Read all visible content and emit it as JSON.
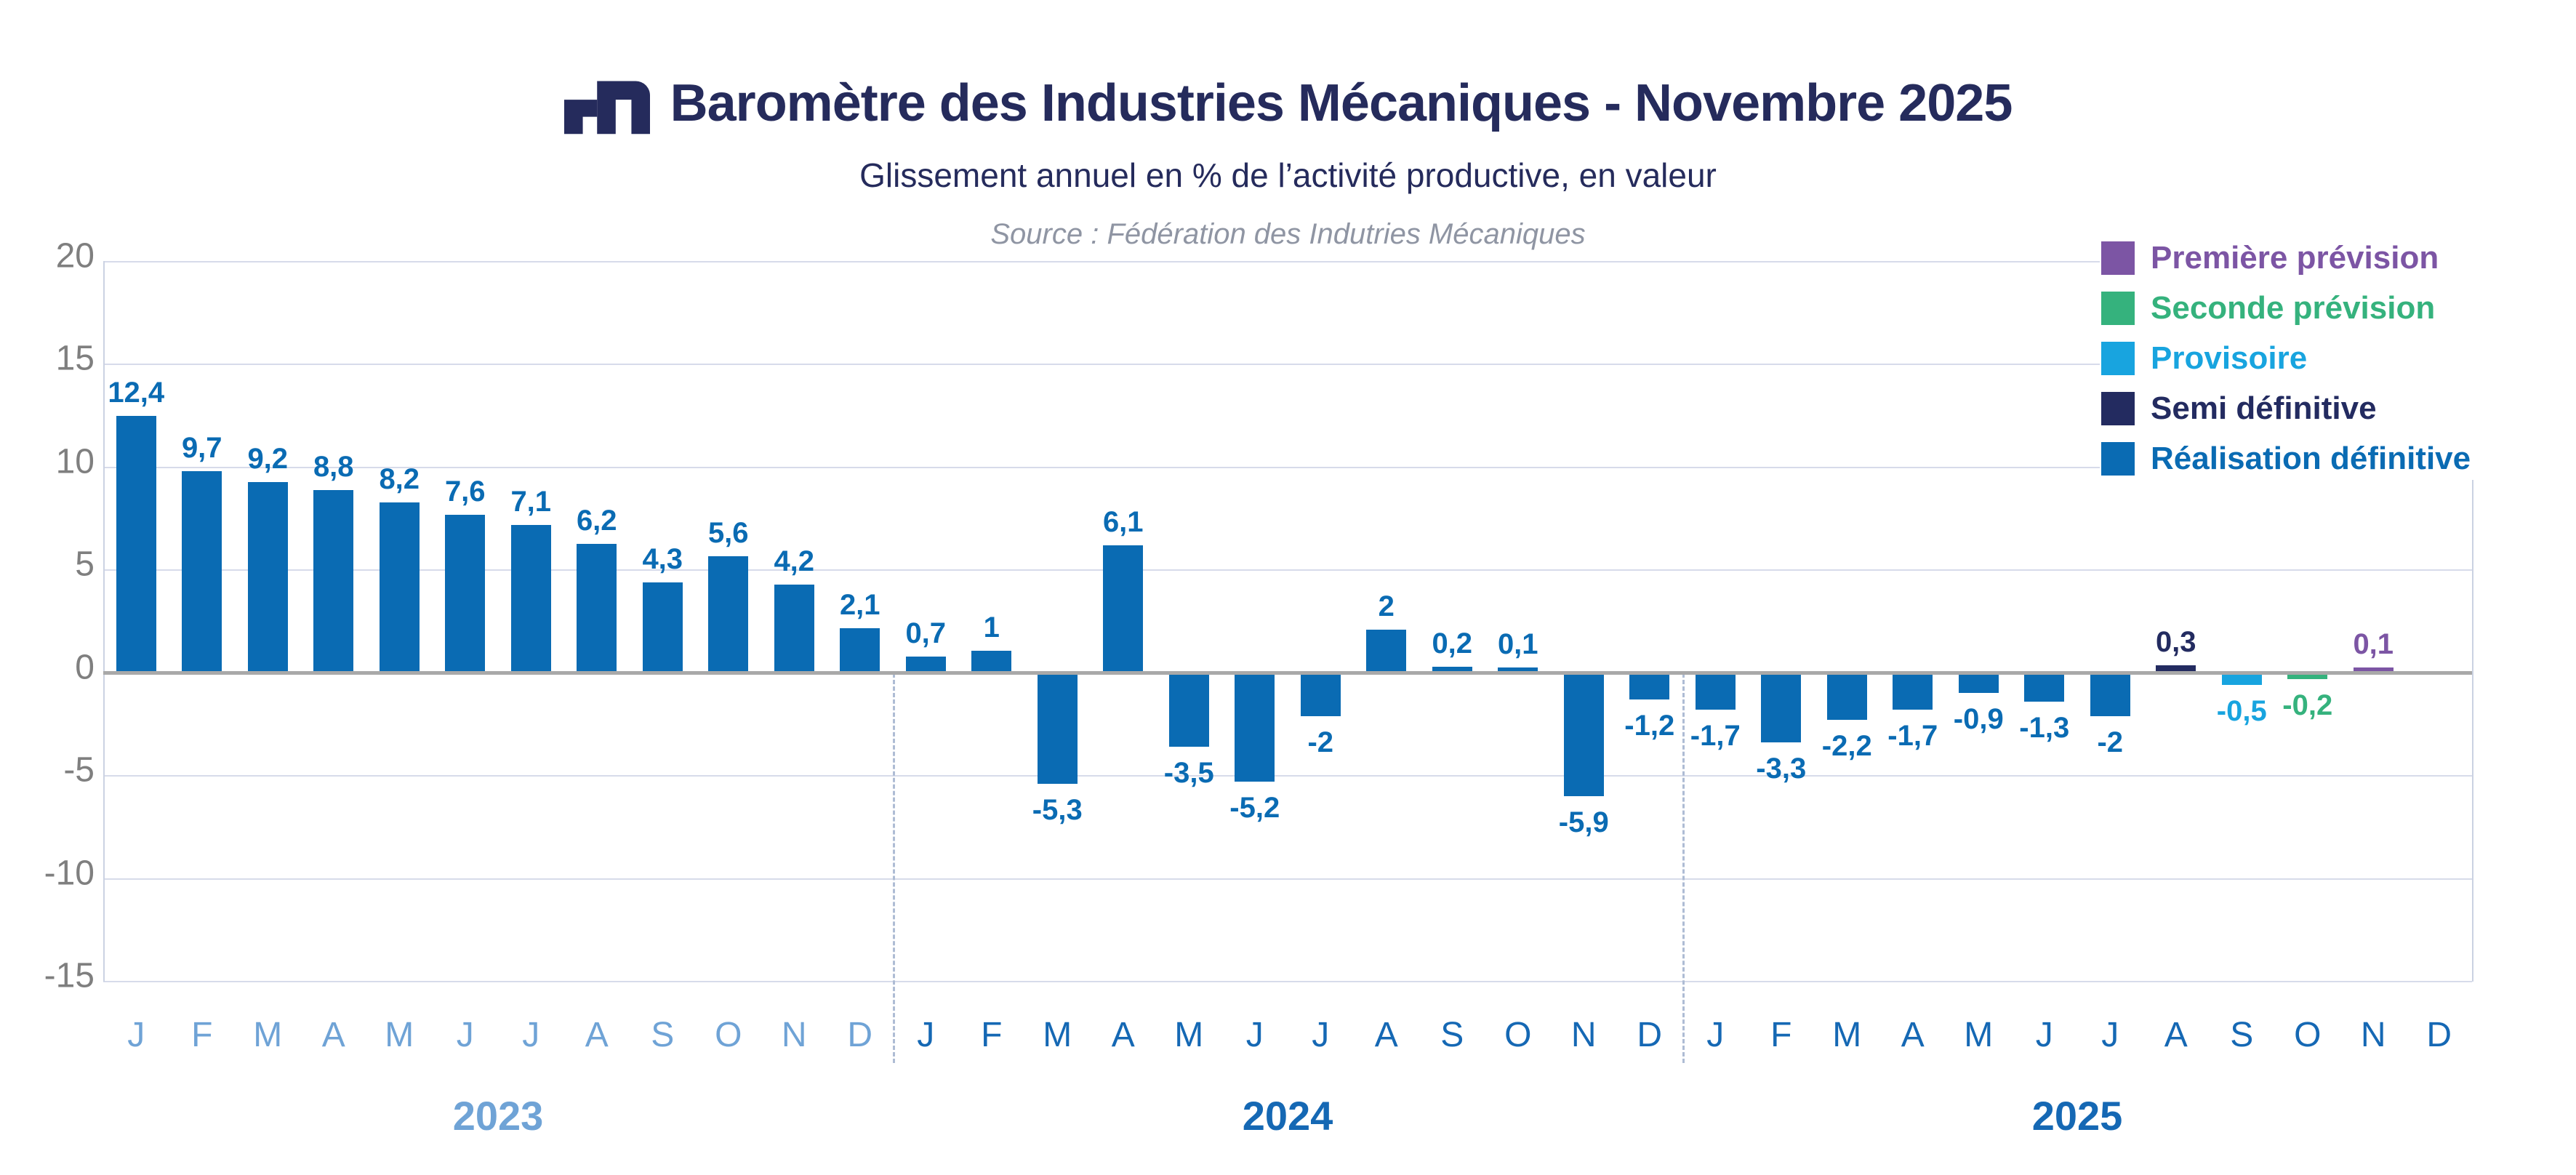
{
  "header": {
    "title": "Baromètre des Industries Mécaniques - Novembre 2025",
    "subtitle": "Glissement annuel en % de l’activité productive, en valeur",
    "source": "Source : Fédération des Indutries Mécaniques"
  },
  "colors": {
    "title_navy": "#252B5C",
    "source_gray": "#8F95A3",
    "tick_gray": "#7F7F7F",
    "gridline": "#D7DBEA",
    "zero_line": "#A9A9A9",
    "year_divider": "#AEBCD4",
    "axis_2023": "#6FA3D6",
    "axis_2024_2025": "#1568B4"
  },
  "legend": {
    "items": [
      {
        "label": "Première prévision",
        "series": "premiere",
        "color": "#7C55A4"
      },
      {
        "label": "Seconde prévision",
        "series": "seconde",
        "color": "#35B27D"
      },
      {
        "label": "Provisoire",
        "series": "provisoire",
        "color": "#18A4DF"
      },
      {
        "label": "Semi définitive",
        "series": "semi",
        "color": "#232B60"
      },
      {
        "label": "Réalisation définitive",
        "series": "realisation",
        "color": "#0A6BB3"
      }
    ]
  },
  "chart_data": {
    "type": "bar",
    "title": "Baromètre des Industries Mécaniques - Novembre 2025",
    "subtitle": "Glissement annuel en % de l’activité productive, en valeur",
    "ylabel": "Glissement annuel en %",
    "ylim": [
      -15,
      20
    ],
    "yticks": [
      20,
      15,
      10,
      5,
      0,
      -5,
      -10,
      -15
    ],
    "grid": true,
    "legend_position": "top-right",
    "series_colors": {
      "premiere": "#7C55A4",
      "seconde": "#35B27D",
      "provisoire": "#18A4DF",
      "semi": "#232B60",
      "realisation": "#0A6BB3"
    },
    "groups": [
      {
        "year": "2023",
        "axis_color": "#6FA3D6",
        "months": [
          "J",
          "F",
          "M",
          "A",
          "M",
          "J",
          "J",
          "A",
          "S",
          "O",
          "N",
          "D"
        ],
        "values": [
          12.4,
          9.7,
          9.2,
          8.8,
          8.2,
          7.6,
          7.1,
          6.2,
          4.3,
          5.6,
          4.2,
          2.1
        ],
        "labels": [
          "12,4",
          "9,7",
          "9,2",
          "8,8",
          "8,2",
          "7,6",
          "7,1",
          "6,2",
          "4,3",
          "5,6",
          "4,2",
          "2,1"
        ],
        "series": [
          "realisation",
          "realisation",
          "realisation",
          "realisation",
          "realisation",
          "realisation",
          "realisation",
          "realisation",
          "realisation",
          "realisation",
          "realisation",
          "realisation"
        ]
      },
      {
        "year": "2024",
        "axis_color": "#1568B4",
        "months": [
          "J",
          "F",
          "M",
          "A",
          "M",
          "J",
          "J",
          "A",
          "S",
          "O",
          "N",
          "D"
        ],
        "values": [
          0.7,
          1,
          -5.3,
          6.1,
          -3.5,
          -5.2,
          -2,
          2,
          0.2,
          0.1,
          -5.9,
          -1.2
        ],
        "labels": [
          "0,7",
          "1",
          "-5,3",
          "6,1",
          "-3,5",
          "-5,2",
          "-2",
          "2",
          "0,2",
          "0,1",
          "-5,9",
          "-1,2"
        ],
        "series": [
          "realisation",
          "realisation",
          "realisation",
          "realisation",
          "realisation",
          "realisation",
          "realisation",
          "realisation",
          "realisation",
          "realisation",
          "realisation",
          "realisation"
        ]
      },
      {
        "year": "2025",
        "axis_color": "#1568B4",
        "months": [
          "J",
          "F",
          "M",
          "A",
          "M",
          "J",
          "J",
          "A",
          "S",
          "O",
          "N",
          "D"
        ],
        "values": [
          -1.7,
          -3.3,
          -2.2,
          -1.7,
          -0.9,
          -1.3,
          -2,
          0.3,
          -0.5,
          -0.2,
          0.1,
          null
        ],
        "labels": [
          "-1,7",
          "-3,3",
          "-2,2",
          "-1,7",
          "-0,9",
          "-1,3",
          "-2",
          "0,3",
          "-0,5",
          "-0,2",
          "0,1",
          null
        ],
        "series": [
          "realisation",
          "realisation",
          "realisation",
          "realisation",
          "realisation",
          "realisation",
          "realisation",
          "semi",
          "provisoire",
          "seconde",
          "premiere",
          null
        ]
      }
    ]
  }
}
